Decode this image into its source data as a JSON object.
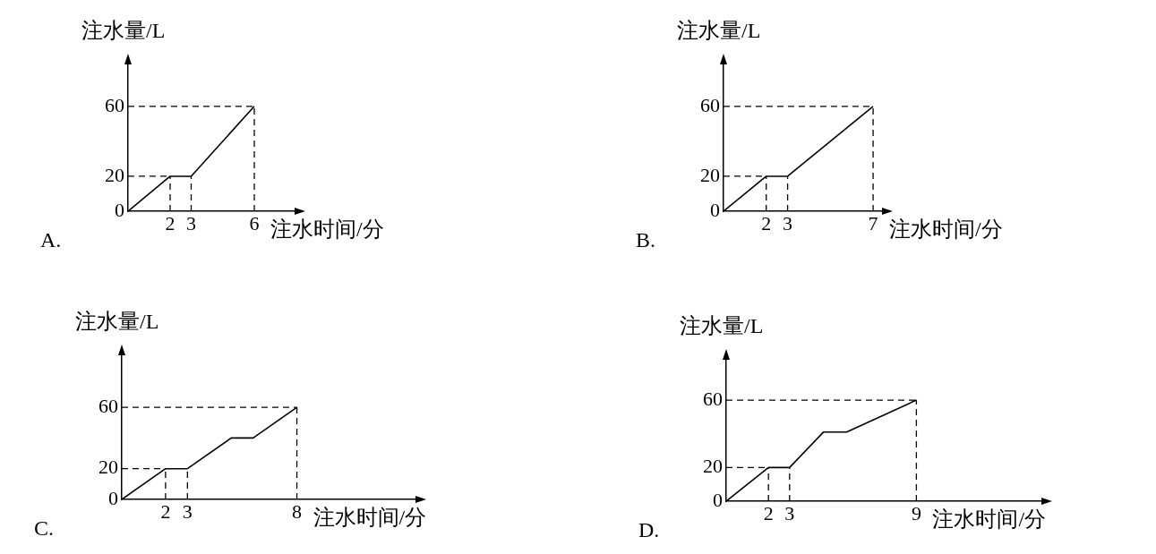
{
  "chart_data": [
    {
      "type": "line",
      "xlabel": "注水时间/分",
      "ylabel": "注水量/L",
      "annotations": [
        "A."
      ],
      "x": [
        0,
        2,
        3,
        6
      ],
      "values": [
        0,
        20,
        20,
        60
      ],
      "color": "#000000",
      "marker": "none",
      "line_style": "solid",
      "xlim": [
        0,
        8
      ],
      "ylim": [
        0,
        85
      ],
      "xticks": [
        2,
        3,
        6
      ],
      "yticks": [
        0,
        20,
        60
      ],
      "ref_lines": [
        {
          "axis": "x",
          "value": 2,
          "line_style": "dashed"
        },
        {
          "axis": "x",
          "value": 3,
          "line_style": "dashed"
        },
        {
          "axis": "x",
          "value": 6,
          "line_style": "dashed"
        },
        {
          "axis": "y",
          "value": 20,
          "line_style": "dashed"
        },
        {
          "axis": "y",
          "value": 60,
          "line_style": "dashed"
        }
      ]
    },
    {
      "type": "line",
      "xlabel": "注水时间/分",
      "ylabel": "注水量/L",
      "annotations": [
        "B."
      ],
      "x": [
        0,
        2,
        3,
        7
      ],
      "values": [
        0,
        20,
        20,
        60
      ],
      "color": "#000000",
      "marker": "none",
      "line_style": "solid",
      "xlim": [
        0,
        7.5
      ],
      "ylim": [
        0,
        85
      ],
      "xticks": [
        2,
        3,
        7
      ],
      "yticks": [
        0,
        20,
        60
      ],
      "ref_lines": [
        {
          "axis": "x",
          "value": 2,
          "line_style": "dashed"
        },
        {
          "axis": "x",
          "value": 3,
          "line_style": "dashed"
        },
        {
          "axis": "x",
          "value": 7,
          "line_style": "dashed"
        },
        {
          "axis": "y",
          "value": 20,
          "line_style": "dashed"
        },
        {
          "axis": "y",
          "value": 60,
          "line_style": "dashed"
        }
      ]
    },
    {
      "type": "line",
      "xlabel": "注水时间/分",
      "ylabel": "注水量/L",
      "annotations": [
        "C."
      ],
      "x": [
        0,
        2,
        3,
        5,
        6,
        8
      ],
      "values": [
        0,
        20,
        20,
        40,
        40,
        60
      ],
      "color": "#000000",
      "marker": "none",
      "line_style": "solid",
      "xlim": [
        0,
        13.5
      ],
      "ylim": [
        0,
        95
      ],
      "xticks": [
        2,
        3,
        8
      ],
      "yticks": [
        0,
        20,
        60
      ],
      "ref_lines": [
        {
          "axis": "x",
          "value": 2,
          "line_style": "dashed"
        },
        {
          "axis": "x",
          "value": 3,
          "line_style": "dashed"
        },
        {
          "axis": "x",
          "value": 8,
          "line_style": "dashed"
        },
        {
          "axis": "y",
          "value": 20,
          "line_style": "dashed"
        },
        {
          "axis": "y",
          "value": 60,
          "line_style": "dashed"
        }
      ]
    },
    {
      "type": "line",
      "xlabel": "注水时间/分",
      "ylabel": "注水量/L",
      "annotations": [
        "D."
      ],
      "x": [
        0,
        2,
        3,
        4.6,
        5.7,
        9
      ],
      "values": [
        0,
        20,
        20,
        41,
        41,
        60
      ],
      "color": "#000000",
      "marker": "none",
      "line_style": "solid",
      "xlim": [
        0,
        15
      ],
      "ylim": [
        0,
        85
      ],
      "xticks": [
        2,
        3,
        9
      ],
      "yticks": [
        0,
        20,
        60
      ],
      "ref_lines": [
        {
          "axis": "x",
          "value": 2,
          "line_style": "dashed"
        },
        {
          "axis": "x",
          "value": 3,
          "line_style": "dashed"
        },
        {
          "axis": "x",
          "value": 9,
          "line_style": "dashed"
        },
        {
          "axis": "y",
          "value": 20,
          "line_style": "dashed"
        },
        {
          "axis": "y",
          "value": 60,
          "line_style": "dashed"
        }
      ]
    }
  ]
}
